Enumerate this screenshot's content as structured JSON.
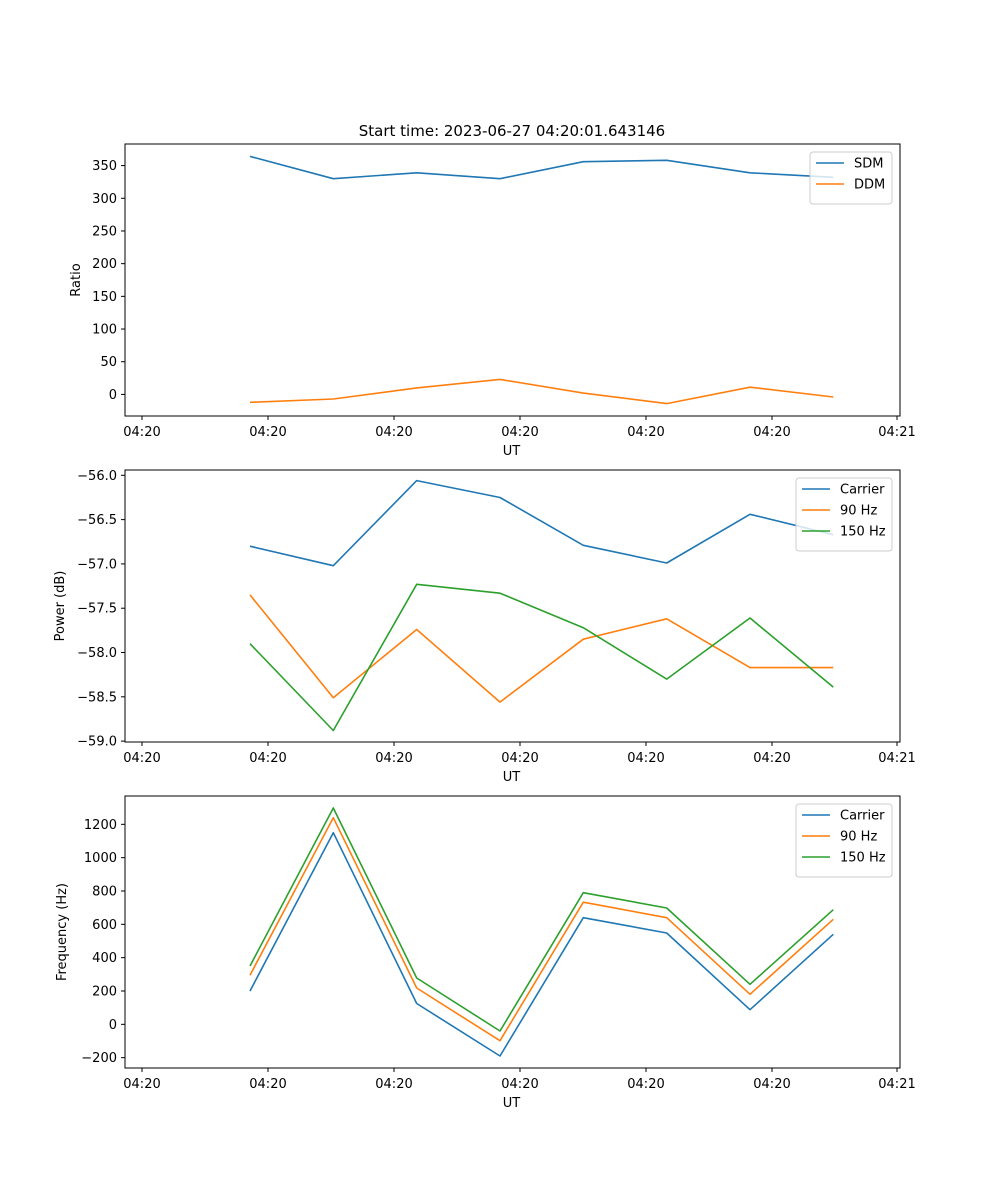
{
  "figure": {
    "title": "Start time: 2023-06-27 04:20:01.643146"
  },
  "chart_data": [
    {
      "type": "line",
      "xlabel": "UT",
      "ylabel": "Ratio",
      "xtick_labels": [
        "04:20",
        "04:20",
        "04:20",
        "04:20",
        "04:20",
        "04:20",
        "04:21"
      ],
      "xlim": [
        -0.5,
        8.8
      ],
      "x": [
        1,
        2,
        3,
        4,
        5,
        6,
        7,
        8
      ],
      "ylim": [
        -33,
        383
      ],
      "yticks": [
        0,
        50,
        100,
        150,
        200,
        250,
        300,
        350
      ],
      "legend": "top-right",
      "series": [
        {
          "name": "SDM",
          "color": "#1f77b4",
          "values": [
            364,
            330,
            339,
            330,
            356,
            358,
            339,
            332
          ]
        },
        {
          "name": "DDM",
          "color": "#ff7f0e",
          "values": [
            -12,
            -7,
            10,
            23,
            2,
            -14,
            11,
            -4
          ]
        }
      ]
    },
    {
      "type": "line",
      "xlabel": "UT",
      "ylabel": "Power (dB)",
      "xtick_labels": [
        "04:20",
        "04:20",
        "04:20",
        "04:20",
        "04:20",
        "04:20",
        "04:21"
      ],
      "xlim": [
        -0.5,
        8.8
      ],
      "x": [
        1,
        2,
        3,
        4,
        5,
        6,
        7,
        8
      ],
      "ylim": [
        -59.01,
        -55.94
      ],
      "yticks": [
        -59.0,
        -58.5,
        -58.0,
        -57.5,
        -57.0,
        -56.5,
        -56.0
      ],
      "ytick_labels": [
        "−59.0",
        "−58.5",
        "−58.0",
        "−57.5",
        "−57.0",
        "−56.5",
        "−56.0"
      ],
      "legend": "top-right",
      "series": [
        {
          "name": "Carrier",
          "color": "#1f77b4",
          "values": [
            -56.8,
            -57.02,
            -56.06,
            -56.25,
            -56.79,
            -56.99,
            -56.44,
            -56.67
          ]
        },
        {
          "name": "90 Hz",
          "color": "#ff7f0e",
          "values": [
            -57.35,
            -58.51,
            -57.74,
            -58.56,
            -57.85,
            -57.62,
            -58.17,
            -58.17
          ]
        },
        {
          "name": "150 Hz",
          "color": "#2ca02c",
          "values": [
            -57.9,
            -58.88,
            -57.23,
            -57.33,
            -57.72,
            -58.3,
            -57.61,
            -58.39
          ]
        }
      ]
    },
    {
      "type": "line",
      "xlabel": "UT",
      "ylabel": "Frequency (Hz)",
      "xtick_labels": [
        "04:20",
        "04:20",
        "04:20",
        "04:20",
        "04:20",
        "04:20",
        "04:21"
      ],
      "xlim": [
        -0.5,
        8.8
      ],
      "x": [
        1,
        2,
        3,
        4,
        5,
        6,
        7,
        8
      ],
      "ylim": [
        -262,
        1370
      ],
      "yticks": [
        -200,
        0,
        200,
        400,
        600,
        800,
        1000,
        1200
      ],
      "ytick_labels": [
        "−200",
        "0",
        "200",
        "400",
        "600",
        "800",
        "1000",
        "1200"
      ],
      "legend": "top-right",
      "series": [
        {
          "name": "Carrier",
          "color": "#1f77b4",
          "values": [
            200,
            1150,
            125,
            -190,
            640,
            548,
            88,
            540
          ]
        },
        {
          "name": "90 Hz",
          "color": "#ff7f0e",
          "values": [
            295,
            1240,
            218,
            -98,
            733,
            640,
            180,
            630
          ]
        },
        {
          "name": "150 Hz",
          "color": "#2ca02c",
          "values": [
            350,
            1298,
            278,
            -40,
            790,
            698,
            240,
            688
          ]
        }
      ]
    }
  ]
}
